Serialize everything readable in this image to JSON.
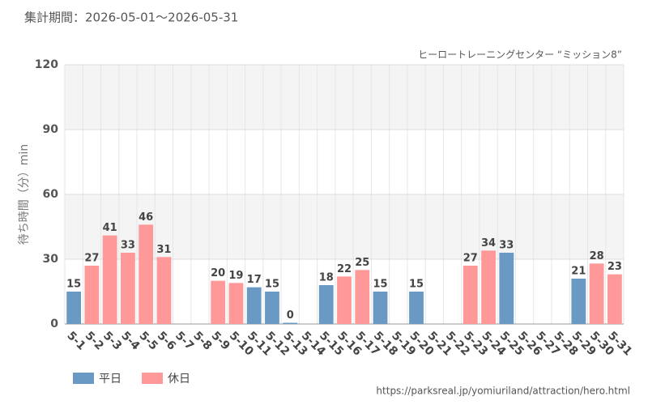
{
  "chart_data": {
    "type": "bar",
    "title": "集計期間：2026-05-01～2026-05-31",
    "subtitle": "ヒーロートレーニングセンター “ミッション8”",
    "y_label": "待ち時間（分）min",
    "source": "https://parksreal.jp/yomiuriland/attraction/hero.html",
    "categories": [
      "5-1",
      "5-2",
      "5-3",
      "5-4",
      "5-5",
      "5-6",
      "5-7",
      "5-8",
      "5-9",
      "5-10",
      "5-11",
      "5-12",
      "5-13",
      "5-14",
      "5-15",
      "5-16",
      "5-17",
      "5-18",
      "5-19",
      "5-20",
      "5-21",
      "5-22",
      "5-23",
      "5-24",
      "5-25",
      "5-26",
      "5-27",
      "5-28",
      "5-29",
      "5-30",
      "5-31"
    ],
    "series": [
      {
        "name": "平日",
        "color": "#6a9ac4",
        "label_color": "#4f7fad",
        "values": [
          15,
          null,
          null,
          null,
          null,
          null,
          null,
          null,
          null,
          null,
          17,
          15,
          0,
          null,
          18,
          null,
          null,
          15,
          null,
          15,
          null,
          null,
          null,
          null,
          33,
          null,
          null,
          null,
          21,
          null,
          null
        ]
      },
      {
        "name": "休日",
        "color": "#ff9999",
        "label_color": "#f07878",
        "values": [
          null,
          27,
          41,
          33,
          46,
          31,
          null,
          null,
          20,
          19,
          null,
          null,
          null,
          null,
          null,
          22,
          25,
          null,
          null,
          null,
          null,
          null,
          27,
          34,
          null,
          null,
          null,
          null,
          null,
          28,
          23
        ]
      }
    ],
    "ylim": [
      0,
      120
    ],
    "yticks": [
      0,
      30,
      60,
      90,
      120
    ],
    "grid": true,
    "legend": "bottom-left"
  }
}
